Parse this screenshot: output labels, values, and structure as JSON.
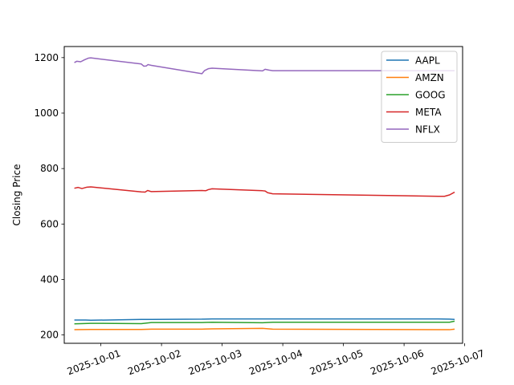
{
  "chart_data": {
    "type": "line",
    "title": "",
    "xlabel": "",
    "ylabel": "Closing Price",
    "xlim": [
      "2025-09-30T09:30",
      "2025-10-06T23:10"
    ],
    "ylim": [
      170,
      1240
    ],
    "x_ticks": [
      "2025-10-01",
      "2025-10-02",
      "2025-10-03",
      "2025-10-04",
      "2025-10-05",
      "2025-10-06",
      "2025-10-07"
    ],
    "y_ticks": [
      200,
      400,
      600,
      800,
      1000,
      1200
    ],
    "grid": false,
    "legend_position": "top-right",
    "series": [
      {
        "name": "AAPL",
        "color": "#1f77b4",
        "points": [
          [
            "2025-09-30T13:30",
            254
          ],
          [
            "2025-09-30T18:00",
            254
          ],
          [
            "2025-09-30T20:00",
            253
          ],
          [
            "2025-10-01T16:00",
            256
          ],
          [
            "2025-10-01T20:00",
            256
          ],
          [
            "2025-10-02T16:00",
            257
          ],
          [
            "2025-10-02T20:00",
            258
          ],
          [
            "2025-10-03T16:00",
            258
          ],
          [
            "2025-10-03T20:00",
            258
          ],
          [
            "2025-10-06T13:30",
            258
          ],
          [
            "2025-10-06T18:00",
            257
          ],
          [
            "2025-10-06T20:00",
            256
          ]
        ]
      },
      {
        "name": "AMZN",
        "color": "#ff7f0e",
        "points": [
          [
            "2025-09-30T13:30",
            219
          ],
          [
            "2025-09-30T20:00",
            220
          ],
          [
            "2025-10-01T16:00",
            220
          ],
          [
            "2025-10-01T20:00",
            221
          ],
          [
            "2025-10-02T16:00",
            221
          ],
          [
            "2025-10-02T20:00",
            222
          ],
          [
            "2025-10-03T16:00",
            224
          ],
          [
            "2025-10-03T20:00",
            221
          ],
          [
            "2025-10-06T13:30",
            219
          ],
          [
            "2025-10-06T18:00",
            219
          ],
          [
            "2025-10-06T20:00",
            221
          ]
        ]
      },
      {
        "name": "GOOG",
        "color": "#2ca02c",
        "points": [
          [
            "2025-09-30T13:30",
            240
          ],
          [
            "2025-09-30T20:00",
            242
          ],
          [
            "2025-10-01T16:00",
            241
          ],
          [
            "2025-10-01T20:00",
            245
          ],
          [
            "2025-10-02T16:00",
            245
          ],
          [
            "2025-10-02T20:00",
            246
          ],
          [
            "2025-10-03T16:00",
            244
          ],
          [
            "2025-10-03T20:00",
            246
          ],
          [
            "2025-10-06T13:30",
            246
          ],
          [
            "2025-10-06T18:00",
            246
          ],
          [
            "2025-10-06T20:00",
            250
          ]
        ]
      },
      {
        "name": "META",
        "color": "#d62728",
        "points": [
          [
            "2025-09-30T13:30",
            729
          ],
          [
            "2025-09-30T15:00",
            732
          ],
          [
            "2025-09-30T16:30",
            728
          ],
          [
            "2025-09-30T18:30",
            733
          ],
          [
            "2025-09-30T20:00",
            734
          ],
          [
            "2025-10-01T16:00",
            716
          ],
          [
            "2025-10-01T17:30",
            715
          ],
          [
            "2025-10-01T18:30",
            721
          ],
          [
            "2025-10-01T19:30",
            718
          ],
          [
            "2025-10-01T20:00",
            717
          ],
          [
            "2025-10-02T16:00",
            721
          ],
          [
            "2025-10-02T17:30",
            720
          ],
          [
            "2025-10-02T18:30",
            724
          ],
          [
            "2025-10-02T20:00",
            727
          ],
          [
            "2025-10-03T16:00",
            720
          ],
          [
            "2025-10-03T17:00",
            719
          ],
          [
            "2025-10-03T18:00",
            713
          ],
          [
            "2025-10-03T20:00",
            709
          ],
          [
            "2025-10-06T13:30",
            700
          ],
          [
            "2025-10-06T16:00",
            700
          ],
          [
            "2025-10-06T18:00",
            705
          ],
          [
            "2025-10-06T20:00",
            715
          ]
        ]
      },
      {
        "name": "NFLX",
        "color": "#9467bd",
        "points": [
          [
            "2025-09-30T13:30",
            1182
          ],
          [
            "2025-09-30T14:30",
            1187
          ],
          [
            "2025-09-30T16:00",
            1185
          ],
          [
            "2025-09-30T17:30",
            1192
          ],
          [
            "2025-09-30T19:00",
            1198
          ],
          [
            "2025-09-30T20:00",
            1199
          ],
          [
            "2025-10-01T16:00",
            1177
          ],
          [
            "2025-10-01T17:00",
            1169
          ],
          [
            "2025-10-01T18:00",
            1170
          ],
          [
            "2025-10-01T18:40",
            1175
          ],
          [
            "2025-10-01T19:30",
            1173
          ],
          [
            "2025-10-01T20:00",
            1172
          ],
          [
            "2025-10-02T16:00",
            1142
          ],
          [
            "2025-10-02T17:00",
            1153
          ],
          [
            "2025-10-02T18:30",
            1160
          ],
          [
            "2025-10-02T20:00",
            1162
          ],
          [
            "2025-10-03T16:00",
            1152
          ],
          [
            "2025-10-03T17:00",
            1158
          ],
          [
            "2025-10-03T18:30",
            1155
          ],
          [
            "2025-10-03T20:00",
            1153
          ],
          [
            "2025-10-06T13:30",
            1153
          ],
          [
            "2025-10-06T20:00",
            1153
          ]
        ]
      }
    ]
  }
}
